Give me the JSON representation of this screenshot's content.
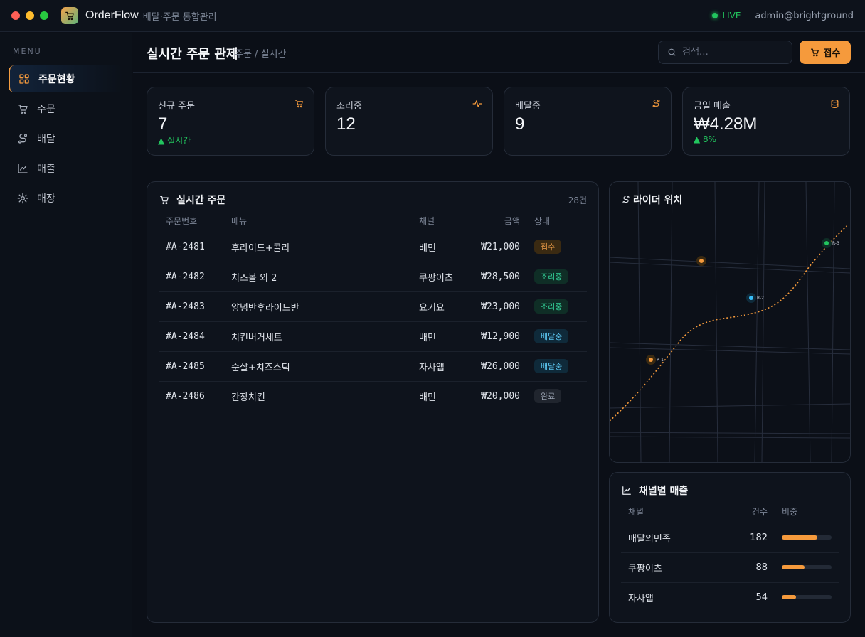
{
  "app": {
    "name": "OrderFlow",
    "subtitle": "배달·주문 통합관리",
    "live_label": "LIVE",
    "user": "admin@brightground"
  },
  "sidebar": {
    "heading": "MENU",
    "items": [
      {
        "label": "주문현황",
        "icon": "grid-icon",
        "active": true
      },
      {
        "label": "주문",
        "icon": "cart-icon",
        "active": false
      },
      {
        "label": "배달",
        "icon": "route-icon",
        "active": false
      },
      {
        "label": "매출",
        "icon": "chart-icon",
        "active": false
      },
      {
        "label": "매장",
        "icon": "gear-icon",
        "active": false
      }
    ]
  },
  "header": {
    "title": "실시간 주문 관제",
    "breadcrumb": "주문 / 실시간",
    "search_placeholder": "검색…",
    "accept_label": "접수"
  },
  "stats": [
    {
      "label": "신규 주문",
      "value": "7",
      "delta": "▲ 실시간",
      "icon": "cart-icon"
    },
    {
      "label": "조리중",
      "value": "12",
      "delta": "",
      "icon": "pulse-icon"
    },
    {
      "label": "배달중",
      "value": "9",
      "delta": "",
      "icon": "route-icon"
    },
    {
      "label": "금일 매출",
      "value": "₩4.28M",
      "delta": "▲ 8%",
      "icon": "database-icon"
    }
  ],
  "orders": {
    "title": "실시간 주문",
    "count": "28건",
    "columns": [
      "주문번호",
      "메뉴",
      "채널",
      "금액",
      "상태"
    ],
    "rows": [
      {
        "id": "#A-2481",
        "menu": "후라이드+콜라",
        "channel": "배민",
        "amount": "₩21,000",
        "status": "접수",
        "kind": "recv"
      },
      {
        "id": "#A-2482",
        "menu": "치즈볼 외 2",
        "channel": "쿠팡이츠",
        "amount": "₩28,500",
        "status": "조리중",
        "kind": "cook"
      },
      {
        "id": "#A-2483",
        "menu": "양념반후라이드반",
        "channel": "요기요",
        "amount": "₩23,000",
        "status": "조리중",
        "kind": "cook"
      },
      {
        "id": "#A-2484",
        "menu": "치킨버거세트",
        "channel": "배민",
        "amount": "₩12,900",
        "status": "배달중",
        "kind": "deliv"
      },
      {
        "id": "#A-2485",
        "menu": "순살+치즈스틱",
        "channel": "자사앱",
        "amount": "₩26,000",
        "status": "배달중",
        "kind": "deliv"
      },
      {
        "id": "#A-2486",
        "menu": "간장치킨",
        "channel": "배민",
        "amount": "₩20,000",
        "status": "완료",
        "kind": "done"
      }
    ]
  },
  "map": {
    "title": "라이더 위치",
    "riders": [
      {
        "label": "R-1",
        "color": "#f59a3c"
      },
      {
        "label": "R-2",
        "color": "#38bdf8"
      },
      {
        "label": "R-3",
        "color": "#22c55e"
      }
    ],
    "store_color": "#f59a3c"
  },
  "channels": {
    "title": "채널별 매출",
    "columns": [
      "채널",
      "건수",
      "비중"
    ],
    "rows": [
      {
        "name": "배달의민족",
        "count": "182",
        "share": 0.72
      },
      {
        "name": "쿠팡이츠",
        "count": "88",
        "share": 0.45
      },
      {
        "name": "자사앱",
        "count": "54",
        "share": 0.28
      }
    ]
  },
  "colors": {
    "accent": "#f59a3c",
    "live": "#22c55e",
    "background": "#0b0f17"
  }
}
